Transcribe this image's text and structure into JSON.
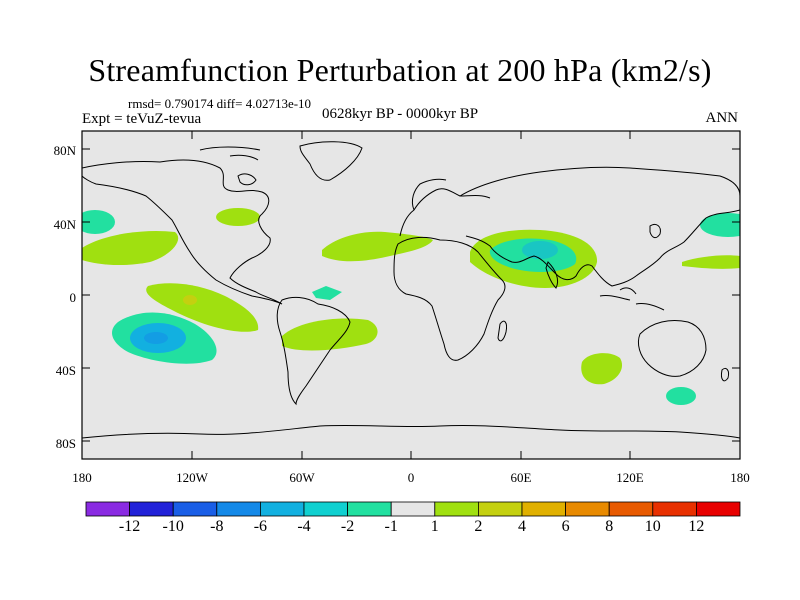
{
  "title": "Streamfunction Perturbation at 200 hPa (km2/s)",
  "stats": "rmsd= 0.790174 diff= 4.02713e-10",
  "experiment": "Expt = teVuZ-tevua",
  "period": "0628kyr BP - 0000kyr BP",
  "season": "ANN",
  "map": {
    "lat_labels": [
      "80N",
      "40N",
      "0",
      "40S",
      "80S"
    ],
    "lon_labels": [
      "180",
      "120W",
      "60W",
      "0",
      "60E",
      "120E",
      "180"
    ],
    "background_color": "#e6e6e6"
  },
  "colorbar": {
    "labels": [
      "-12",
      "-10",
      "-8",
      "-6",
      "-4",
      "-2",
      "-1",
      "1",
      "2",
      "4",
      "6",
      "8",
      "10",
      "12"
    ],
    "colors": [
      "#8a2be2",
      "#2222d8",
      "#1a5ee6",
      "#1489e8",
      "#12b0e0",
      "#10d0d0",
      "#22e0a0",
      "#e6e6e6",
      "#a0e010",
      "#c4d010",
      "#e0b000",
      "#e88a00",
      "#e85a00",
      "#e83000",
      "#e80000"
    ]
  }
}
